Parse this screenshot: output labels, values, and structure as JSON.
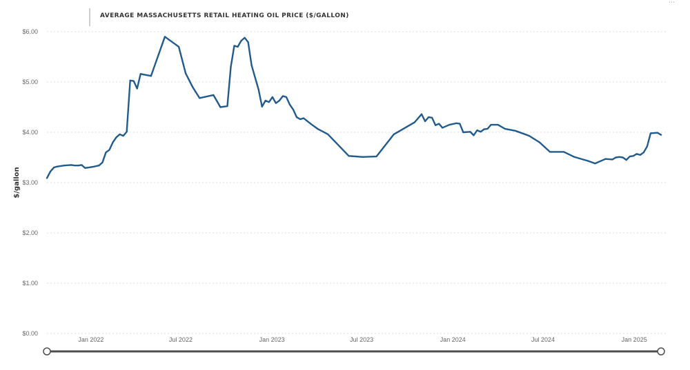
{
  "chart_data": {
    "type": "line",
    "title": "AVERAGE MASSACHUSETTS RETAIL HEATING OIL PRICE ($/GALLON)",
    "xlabel": "",
    "ylabel": "$/gallon",
    "ylim": [
      0,
      6
    ],
    "y_ticks": [
      {
        "value": 0,
        "label": "$0.00"
      },
      {
        "value": 1,
        "label": "$1.00"
      },
      {
        "value": 2,
        "label": "$2.00"
      },
      {
        "value": 3,
        "label": "$3.00"
      },
      {
        "value": 4,
        "label": "$4.00"
      },
      {
        "value": 5,
        "label": "$5.00"
      },
      {
        "value": 6,
        "label": "$6.00"
      }
    ],
    "x_range": [
      "2021-10-04",
      "2025-02-24"
    ],
    "x_ticks": [
      {
        "date": "2022-01-01",
        "label": "Jan 2022"
      },
      {
        "date": "2022-07-01",
        "label": "Jul 2022"
      },
      {
        "date": "2023-01-01",
        "label": "Jan 2023"
      },
      {
        "date": "2023-07-01",
        "label": "Jul 2023"
      },
      {
        "date": "2024-01-01",
        "label": "Jan 2024"
      },
      {
        "date": "2024-07-01",
        "label": "Jul 2024"
      },
      {
        "date": "2025-01-01",
        "label": "Jan 2025"
      }
    ],
    "grid": true,
    "series": [
      {
        "name": "Average Massachusetts retail heating oil price",
        "color": "#215a8c",
        "points": [
          [
            "2021-10-04",
            3.09
          ],
          [
            "2021-10-11",
            3.22
          ],
          [
            "2021-10-18",
            3.3
          ],
          [
            "2021-10-25",
            3.32
          ],
          [
            "2021-11-08",
            3.34
          ],
          [
            "2021-11-22",
            3.35
          ],
          [
            "2021-11-29",
            3.34
          ],
          [
            "2021-12-06",
            3.34
          ],
          [
            "2021-12-13",
            3.35
          ],
          [
            "2021-12-20",
            3.29
          ],
          [
            "2022-01-03",
            3.31
          ],
          [
            "2022-01-17",
            3.34
          ],
          [
            "2022-01-24",
            3.4
          ],
          [
            "2022-01-31",
            3.6
          ],
          [
            "2022-02-07",
            3.65
          ],
          [
            "2022-02-14",
            3.8
          ],
          [
            "2022-02-21",
            3.9
          ],
          [
            "2022-02-28",
            3.96
          ],
          [
            "2022-03-07",
            3.93
          ],
          [
            "2022-03-14",
            4.01
          ],
          [
            "2022-03-21",
            5.03
          ],
          [
            "2022-03-28",
            5.02
          ],
          [
            "2022-04-04",
            4.87
          ],
          [
            "2022-04-11",
            5.16
          ],
          [
            "2022-05-02",
            5.12
          ],
          [
            "2022-05-30",
            5.9
          ],
          [
            "2022-06-27",
            5.7
          ],
          [
            "2022-07-11",
            5.17
          ],
          [
            "2022-07-25",
            4.9
          ],
          [
            "2022-08-08",
            4.68
          ],
          [
            "2022-09-05",
            4.74
          ],
          [
            "2022-09-19",
            4.5
          ],
          [
            "2022-10-03",
            4.52
          ],
          [
            "2022-10-10",
            5.3
          ],
          [
            "2022-10-17",
            5.72
          ],
          [
            "2022-10-24",
            5.7
          ],
          [
            "2022-10-31",
            5.82
          ],
          [
            "2022-11-07",
            5.88
          ],
          [
            "2022-11-14",
            5.79
          ],
          [
            "2022-11-21",
            5.33
          ],
          [
            "2022-12-05",
            4.85
          ],
          [
            "2022-12-12",
            4.51
          ],
          [
            "2022-12-19",
            4.63
          ],
          [
            "2022-12-26",
            4.6
          ],
          [
            "2023-01-02",
            4.7
          ],
          [
            "2023-01-09",
            4.58
          ],
          [
            "2023-01-16",
            4.63
          ],
          [
            "2023-01-23",
            4.72
          ],
          [
            "2023-01-30",
            4.7
          ],
          [
            "2023-02-06",
            4.55
          ],
          [
            "2023-02-13",
            4.45
          ],
          [
            "2023-02-20",
            4.3
          ],
          [
            "2023-02-27",
            4.26
          ],
          [
            "2023-03-06",
            4.28
          ],
          [
            "2023-03-20",
            4.17
          ],
          [
            "2023-04-03",
            4.07
          ],
          [
            "2023-04-24",
            3.96
          ],
          [
            "2023-06-05",
            3.53
          ],
          [
            "2023-07-03",
            3.51
          ],
          [
            "2023-07-31",
            3.52
          ],
          [
            "2023-09-04",
            3.96
          ],
          [
            "2023-10-16",
            4.2
          ],
          [
            "2023-10-30",
            4.36
          ],
          [
            "2023-11-06",
            4.22
          ],
          [
            "2023-11-13",
            4.3
          ],
          [
            "2023-11-20",
            4.29
          ],
          [
            "2023-11-27",
            4.14
          ],
          [
            "2023-12-04",
            4.17
          ],
          [
            "2023-12-11",
            4.09
          ],
          [
            "2023-12-25",
            4.15
          ],
          [
            "2024-01-08",
            4.18
          ],
          [
            "2024-01-15",
            4.17
          ],
          [
            "2024-01-22",
            4.0
          ],
          [
            "2024-02-05",
            4.01
          ],
          [
            "2024-02-12",
            3.94
          ],
          [
            "2024-02-19",
            4.04
          ],
          [
            "2024-02-26",
            4.01
          ],
          [
            "2024-03-04",
            4.06
          ],
          [
            "2024-03-11",
            4.07
          ],
          [
            "2024-03-18",
            4.15
          ],
          [
            "2024-04-01",
            4.15
          ],
          [
            "2024-04-15",
            4.07
          ],
          [
            "2024-05-06",
            4.03
          ],
          [
            "2024-06-03",
            3.93
          ],
          [
            "2024-06-24",
            3.8
          ],
          [
            "2024-07-15",
            3.61
          ],
          [
            "2024-08-12",
            3.61
          ],
          [
            "2024-09-02",
            3.51
          ],
          [
            "2024-09-30",
            3.43
          ],
          [
            "2024-10-14",
            3.38
          ],
          [
            "2024-11-04",
            3.47
          ],
          [
            "2024-11-18",
            3.46
          ],
          [
            "2024-11-25",
            3.5
          ],
          [
            "2024-12-02",
            3.51
          ],
          [
            "2024-12-09",
            3.5
          ],
          [
            "2024-12-16",
            3.45
          ],
          [
            "2024-12-23",
            3.52
          ],
          [
            "2024-12-30",
            3.53
          ],
          [
            "2025-01-06",
            3.57
          ],
          [
            "2025-01-13",
            3.55
          ],
          [
            "2025-01-20",
            3.6
          ],
          [
            "2025-01-27",
            3.72
          ],
          [
            "2025-02-03",
            3.98
          ],
          [
            "2025-02-17",
            3.99
          ],
          [
            "2025-02-24",
            3.95
          ]
        ]
      }
    ]
  }
}
